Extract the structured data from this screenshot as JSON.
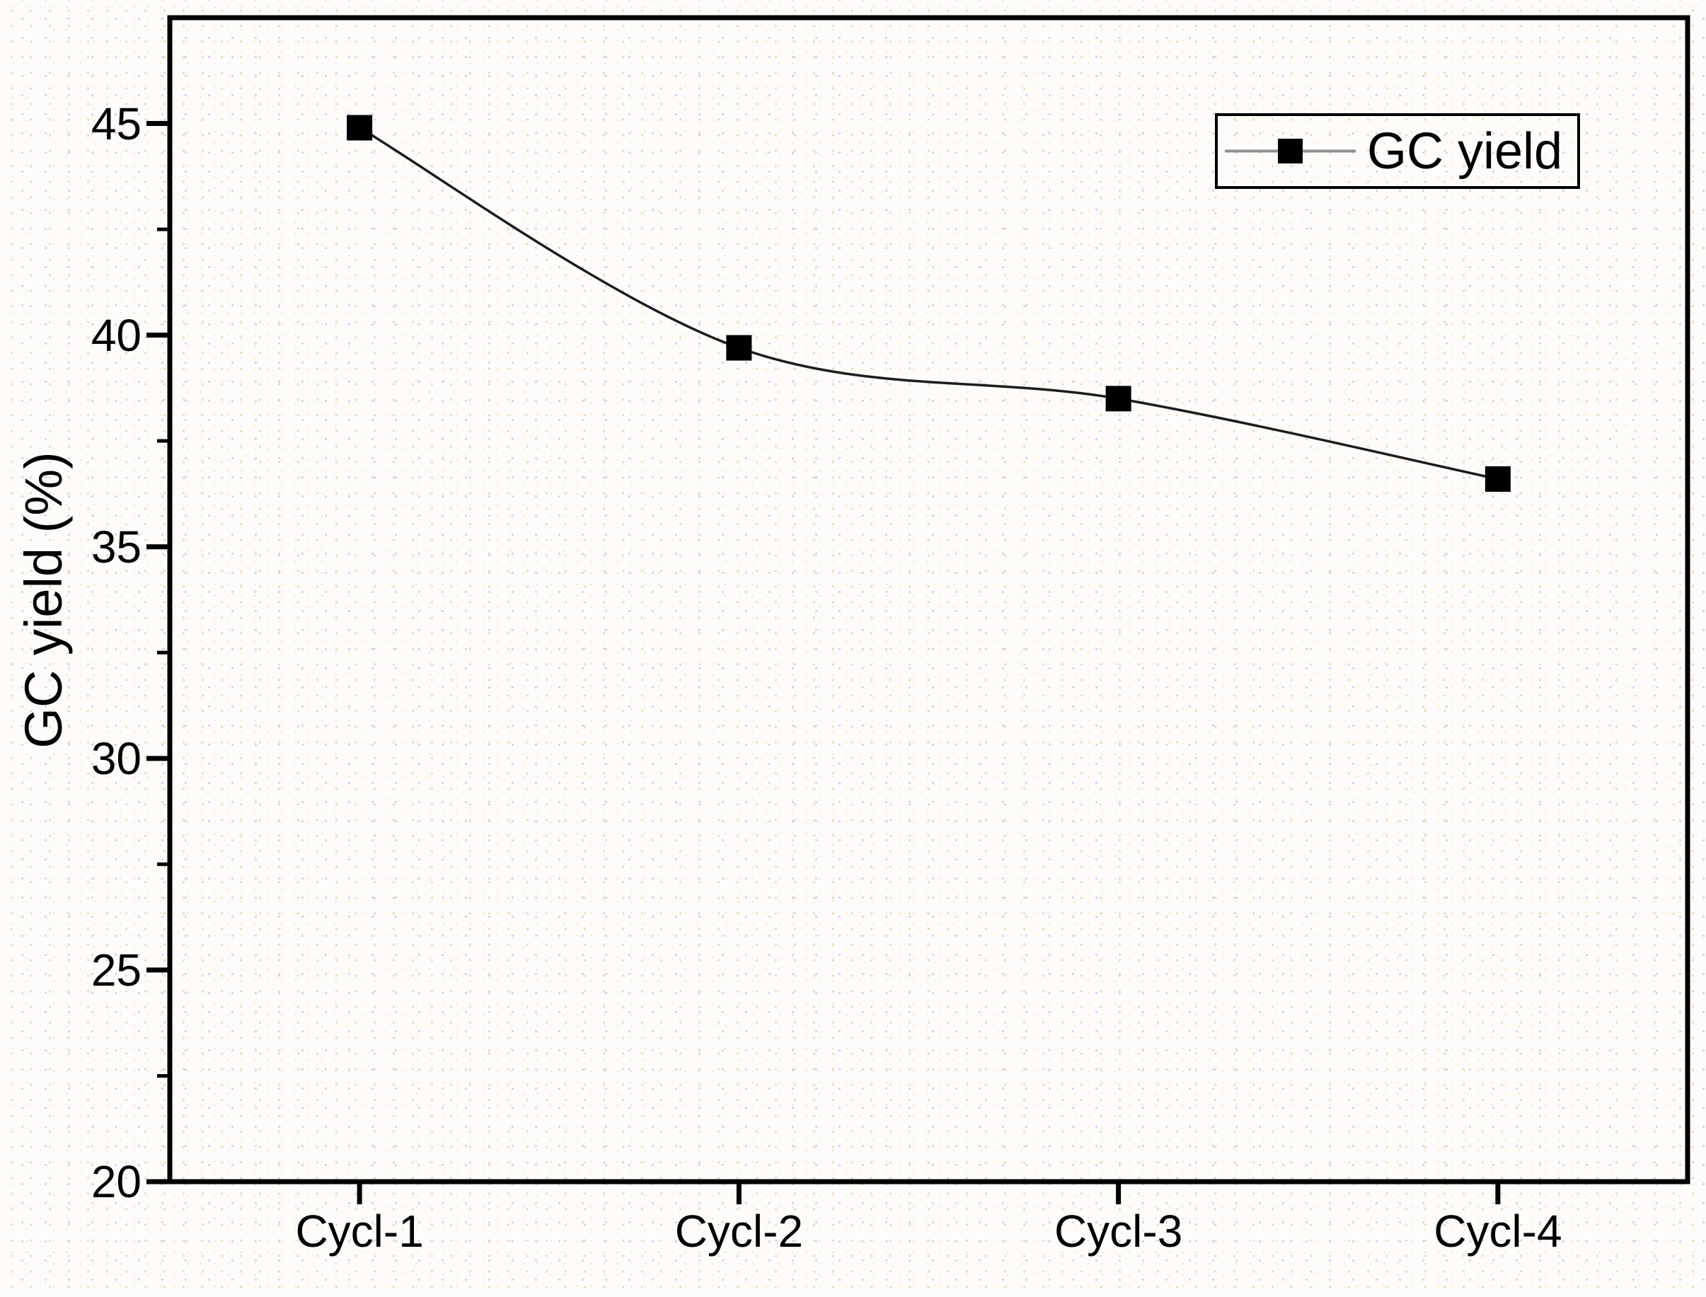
{
  "figure": {
    "background_color": "#fdfcfa",
    "background_dot_colors": [
      "#f0d3bd",
      "#dccaef",
      "#f6e4d2"
    ],
    "axis_color": "#000000",
    "text_color": "#000000"
  },
  "chart_data": {
    "type": "line",
    "title": "",
    "categories": [
      "Cycl-1",
      "Cycl-2",
      "Cycl-3",
      "Cycl-4"
    ],
    "series": [
      {
        "name": "GC yield",
        "values": [
          44.9,
          39.7,
          38.5,
          36.6
        ],
        "marker": "square",
        "marker_color": "#000000",
        "line_color": "#1c1c1c"
      }
    ],
    "xlabel": "",
    "ylabel": "GC yield (%)",
    "ylim": [
      20,
      47.5
    ],
    "yticks": [
      45,
      40,
      35,
      30,
      25,
      20
    ],
    "yminor_ticks": [
      42.5,
      37.5,
      32.5,
      27.5,
      22.5
    ],
    "grid": false,
    "legend": {
      "label": "GC yield",
      "position": "top-right",
      "line_color": "#8f8f8f"
    }
  }
}
